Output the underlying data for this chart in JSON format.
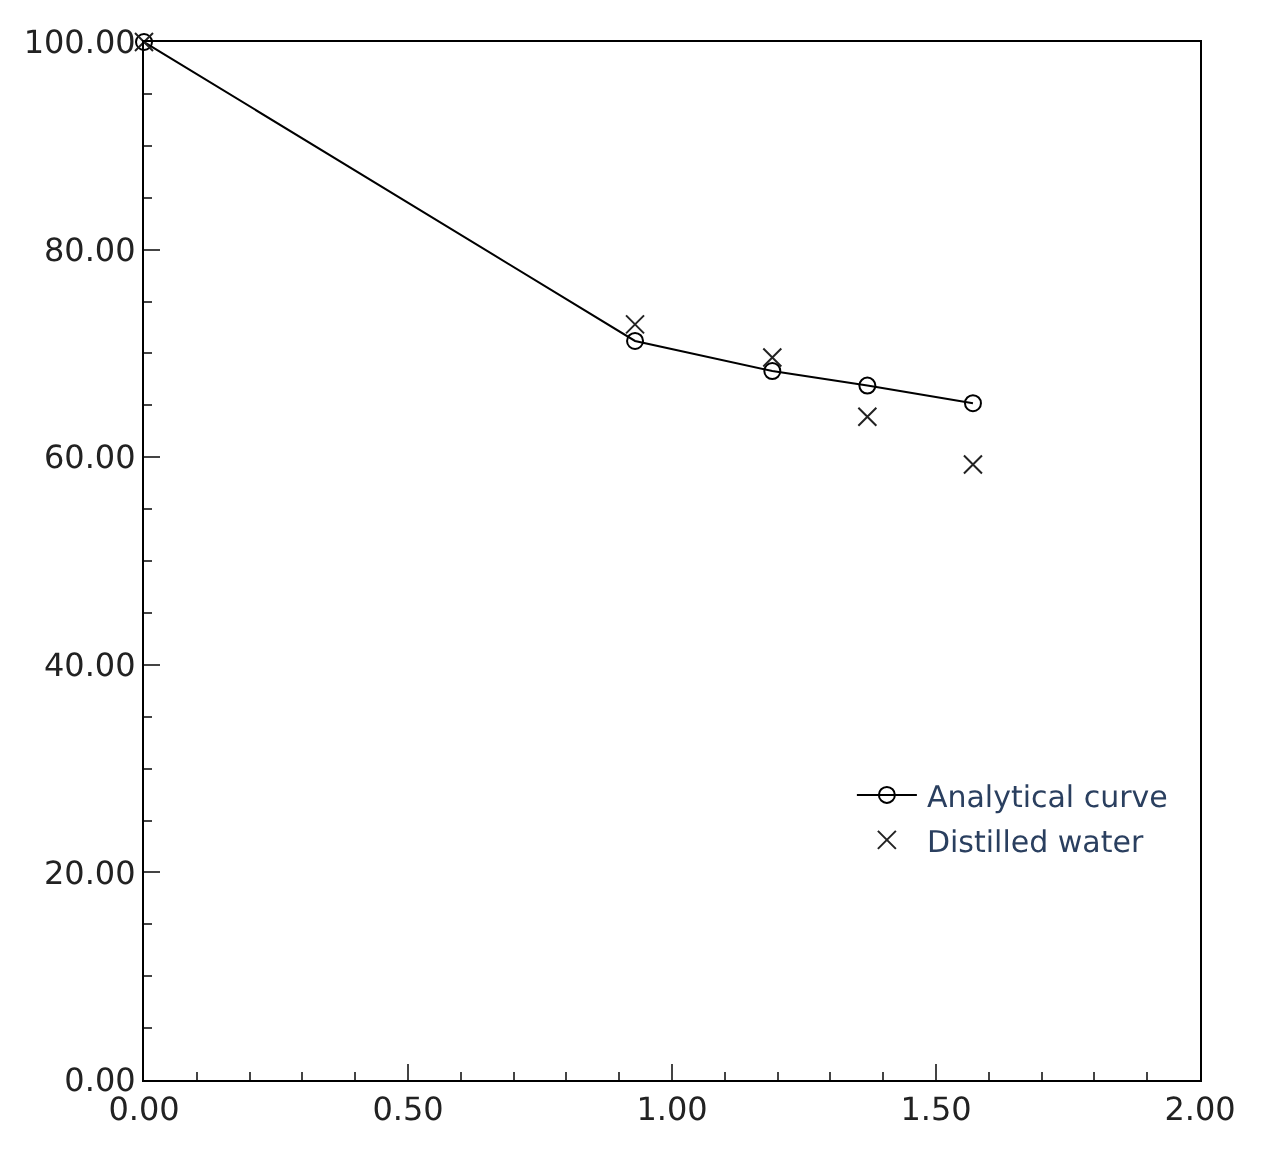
{
  "chart_data": {
    "type": "line",
    "xlim": [
      0,
      2
    ],
    "ylim": [
      0,
      100
    ],
    "xticks": [
      {
        "value": 0,
        "label": "0.00"
      },
      {
        "value": 0.5,
        "label": "0.50"
      },
      {
        "value": 1,
        "label": "1.00"
      },
      {
        "value": 1.5,
        "label": "1.50"
      },
      {
        "value": 2,
        "label": "2.00"
      }
    ],
    "yticks": [
      {
        "value": 0,
        "label": "0.00"
      },
      {
        "value": 20,
        "label": "20.00"
      },
      {
        "value": 40,
        "label": "40.00"
      },
      {
        "value": 60,
        "label": "60.00"
      },
      {
        "value": 80,
        "label": "80.00"
      },
      {
        "value": 100,
        "label": "100.00"
      }
    ],
    "legend": "bottom right",
    "series": [
      {
        "name": "Analytical curve",
        "type": "line",
        "marker": "circle",
        "color": "#000000",
        "x": [
          0,
          0.93,
          1.19,
          1.37,
          1.57
        ],
        "values": [
          100,
          71.2,
          68.3,
          66.9,
          65.2
        ]
      },
      {
        "name": "Distilled water",
        "type": "scatter",
        "marker": "cross",
        "color": "#222222",
        "x": [
          0,
          0.93,
          1.19,
          1.37,
          1.57
        ],
        "values": [
          100,
          72.8,
          69.6,
          63.9,
          59.3
        ]
      }
    ]
  }
}
